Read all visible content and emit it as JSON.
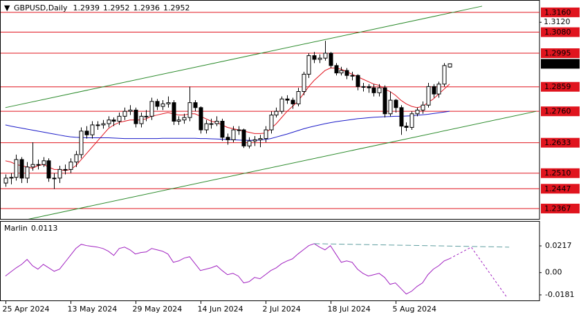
{
  "chart_data": {
    "type": "candlestick",
    "title": "GBPUSD,Daily",
    "header_values": [
      1.2939,
      1.2952,
      1.2936,
      1.2952
    ],
    "categories": [
      "25 Apr 2024",
      null,
      null,
      null,
      null,
      null,
      null,
      null,
      null,
      null,
      null,
      null,
      "13 May 2024",
      null,
      null,
      null,
      null,
      null,
      null,
      null,
      null,
      null,
      null,
      null,
      "29 May 2024",
      null,
      null,
      null,
      null,
      null,
      null,
      null,
      null,
      null,
      null,
      null,
      "14 Jun 2024",
      null,
      null,
      null,
      null,
      null,
      null,
      null,
      null,
      null,
      null,
      null,
      "2 Jul 2024",
      null,
      null,
      null,
      null,
      null,
      null,
      null,
      null,
      null,
      null,
      null,
      "18 Jul 2024",
      null,
      null,
      null,
      null,
      null,
      null,
      null,
      null,
      null,
      null,
      null,
      "5 Aug 2024",
      null,
      null,
      null,
      null,
      null,
      null,
      null,
      null,
      null,
      null
    ],
    "ohlc": [
      [
        1.247,
        1.2505,
        1.2455,
        1.249
      ],
      [
        1.249,
        1.251,
        1.2465,
        1.2493
      ],
      [
        1.2493,
        1.2585,
        1.248,
        1.2565
      ],
      [
        1.2565,
        1.2575,
        1.247,
        1.249
      ],
      [
        1.249,
        1.2555,
        1.247,
        1.2535
      ],
      [
        1.2535,
        1.2635,
        1.252,
        1.2545
      ],
      [
        1.2545,
        1.2565,
        1.2525,
        1.2545
      ],
      [
        1.2545,
        1.2575,
        1.2535,
        1.256
      ],
      [
        1.256,
        1.257,
        1.2475,
        1.249
      ],
      [
        1.249,
        1.251,
        1.2446,
        1.249
      ],
      [
        1.249,
        1.254,
        1.247,
        1.2525
      ],
      [
        1.2525,
        1.2545,
        1.2505,
        1.2525
      ],
      [
        1.2525,
        1.257,
        1.251,
        1.2555
      ],
      [
        1.2555,
        1.26,
        1.2535,
        1.2585
      ],
      [
        1.2585,
        1.2695,
        1.257,
        1.268
      ],
      [
        1.268,
        1.27,
        1.265,
        1.2665
      ],
      [
        1.2665,
        1.272,
        1.265,
        1.2705
      ],
      [
        1.2705,
        1.272,
        1.2685,
        1.2705
      ],
      [
        1.2705,
        1.2725,
        1.269,
        1.271
      ],
      [
        1.271,
        1.274,
        1.2695,
        1.2725
      ],
      [
        1.2725,
        1.2735,
        1.27,
        1.272
      ],
      [
        1.272,
        1.2755,
        1.2705,
        1.274
      ],
      [
        1.274,
        1.2775,
        1.2725,
        1.276
      ],
      [
        1.276,
        1.2785,
        1.2745,
        1.2765
      ],
      [
        1.2765,
        1.2775,
        1.2695,
        1.271
      ],
      [
        1.271,
        1.2755,
        1.2695,
        1.274
      ],
      [
        1.274,
        1.2765,
        1.272,
        1.274
      ],
      [
        1.274,
        1.2815,
        1.2725,
        1.28
      ],
      [
        1.28,
        1.281,
        1.2765,
        1.278
      ],
      [
        1.278,
        1.2805,
        1.2765,
        1.279
      ],
      [
        1.279,
        1.282,
        1.2775,
        1.2795
      ],
      [
        1.2795,
        1.2805,
        1.2705,
        1.272
      ],
      [
        1.272,
        1.274,
        1.2705,
        1.2725
      ],
      [
        1.2725,
        1.275,
        1.271,
        1.2735
      ],
      [
        1.2735,
        1.286,
        1.272,
        1.2795
      ],
      [
        1.2795,
        1.2805,
        1.276,
        1.2775
      ],
      [
        1.2775,
        1.278,
        1.267,
        1.2685
      ],
      [
        1.2685,
        1.2725,
        1.267,
        1.271
      ],
      [
        1.271,
        1.273,
        1.269,
        1.271
      ],
      [
        1.271,
        1.274,
        1.27,
        1.272
      ],
      [
        1.272,
        1.273,
        1.264,
        1.2655
      ],
      [
        1.2655,
        1.267,
        1.2625,
        1.2645
      ],
      [
        1.2645,
        1.27,
        1.2635,
        1.2685
      ],
      [
        1.2685,
        1.27,
        1.2665,
        1.2685
      ],
      [
        1.2685,
        1.269,
        1.2612,
        1.262
      ],
      [
        1.262,
        1.2655,
        1.261,
        1.264
      ],
      [
        1.264,
        1.266,
        1.262,
        1.2645
      ],
      [
        1.2645,
        1.2665,
        1.2615,
        1.265
      ],
      [
        1.265,
        1.27,
        1.2635,
        1.2685
      ],
      [
        1.2685,
        1.276,
        1.267,
        1.2745
      ],
      [
        1.2745,
        1.2775,
        1.2735,
        1.276
      ],
      [
        1.276,
        1.282,
        1.275,
        1.281
      ],
      [
        1.281,
        1.2825,
        1.279,
        1.2805
      ],
      [
        1.2805,
        1.2815,
        1.277,
        1.279
      ],
      [
        1.279,
        1.2855,
        1.278,
        1.284
      ],
      [
        1.284,
        1.292,
        1.2825,
        1.291
      ],
      [
        1.291,
        1.2995,
        1.2895,
        1.2985
      ],
      [
        1.2985,
        1.3,
        1.2955,
        1.297
      ],
      [
        1.297,
        1.299,
        1.2955,
        1.2975
      ],
      [
        1.2975,
        1.3045,
        1.2965,
        1.2995
      ],
      [
        1.2995,
        1.3,
        1.2935,
        1.2945
      ],
      [
        1.2945,
        1.2955,
        1.2905,
        1.2915
      ],
      [
        1.2915,
        1.294,
        1.2905,
        1.2925
      ],
      [
        1.2925,
        1.2935,
        1.289,
        1.2905
      ],
      [
        1.2905,
        1.292,
        1.2885,
        1.2905
      ],
      [
        1.2905,
        1.291,
        1.2845,
        1.286
      ],
      [
        1.286,
        1.2875,
        1.284,
        1.286
      ],
      [
        1.286,
        1.287,
        1.2835,
        1.2855
      ],
      [
        1.2855,
        1.287,
        1.282,
        1.2835
      ],
      [
        1.2835,
        1.287,
        1.282,
        1.2855
      ],
      [
        1.2855,
        1.2865,
        1.2735,
        1.275
      ],
      [
        1.275,
        1.284,
        1.274,
        1.2805
      ],
      [
        1.2805,
        1.281,
        1.2755,
        1.2775
      ],
      [
        1.2775,
        1.2785,
        1.2665,
        1.27
      ],
      [
        1.27,
        1.2715,
        1.268,
        1.2695
      ],
      [
        1.2695,
        1.276,
        1.2685,
        1.275
      ],
      [
        1.275,
        1.2775,
        1.274,
        1.2765
      ],
      [
        1.2765,
        1.28,
        1.275,
        1.2785
      ],
      [
        1.2785,
        1.2875,
        1.2775,
        1.286
      ],
      [
        1.286,
        1.287,
        1.2815,
        1.283
      ],
      [
        1.283,
        1.288,
        1.2815,
        1.287
      ],
      [
        1.287,
        1.2955,
        1.286,
        1.2945
      ],
      [
        1.2939,
        1.2952,
        1.2936,
        1.2952
      ]
    ],
    "xlim": [
      -1,
      98.6
    ],
    "ylim": [
      1.2325,
      1.3196
    ],
    "yticks": [
      {
        "value": 1.312,
        "label": "1.3120"
      }
    ],
    "levels": [
      {
        "value": 1.316,
        "label": "1.3160"
      },
      {
        "value": 1.308,
        "label": "1.3080"
      },
      {
        "value": 1.2995,
        "label": "1.2995"
      },
      {
        "value": 1.2859,
        "label": "1.2859"
      },
      {
        "value": 1.276,
        "label": "1.2760"
      },
      {
        "value": 1.2633,
        "label": "1.2633"
      },
      {
        "value": 1.251,
        "label": "1.2510"
      },
      {
        "value": 1.2447,
        "label": "1.2447"
      },
      {
        "value": 1.2367,
        "label": "1.2367"
      }
    ],
    "level_color": "#e0141e",
    "current_price": 1.2952,
    "moving_averages": [
      {
        "color": "#e0141e",
        "values": [
          1.256,
          1.2555,
          1.2545,
          1.254,
          1.2535,
          1.253,
          1.254,
          1.2545,
          1.2535,
          1.2525,
          1.2525,
          1.252,
          1.2525,
          1.254,
          1.2565,
          1.259,
          1.2615,
          1.264,
          1.2665,
          1.269,
          1.2705,
          1.2715,
          1.272,
          1.2725,
          1.2725,
          1.2725,
          1.273,
          1.274,
          1.2745,
          1.275,
          1.2755,
          1.275,
          1.2745,
          1.2745,
          1.275,
          1.275,
          1.274,
          1.273,
          1.272,
          1.2715,
          1.2705,
          1.2695,
          1.269,
          1.2685,
          1.268,
          1.2675,
          1.267,
          1.267,
          1.2672,
          1.269,
          1.271,
          1.2735,
          1.276,
          1.278,
          1.28,
          1.283,
          1.286,
          1.2885,
          1.2905,
          1.2925,
          1.2935,
          1.2935,
          1.293,
          1.292,
          1.291,
          1.29,
          1.289,
          1.288,
          1.287,
          1.2865,
          1.285,
          1.284,
          1.2825,
          1.2805,
          1.279,
          1.278,
          1.2775,
          1.278,
          1.2795,
          1.281,
          1.283,
          1.285,
          1.287
        ]
      },
      {
        "color": "#1a1ac8",
        "values": [
          1.2705,
          1.27,
          1.2696,
          1.2692,
          1.2688,
          1.2684,
          1.268,
          1.2676,
          1.2672,
          1.2668,
          1.2664,
          1.266,
          1.2657,
          1.2655,
          1.2654,
          1.2653,
          1.2653,
          1.2653,
          1.2653,
          1.2653,
          1.2652,
          1.2651,
          1.265,
          1.265,
          1.265,
          1.265,
          1.265,
          1.265,
          1.265,
          1.2651,
          1.2651,
          1.2651,
          1.2651,
          1.2651,
          1.2651,
          1.2651,
          1.265,
          1.265,
          1.2649,
          1.2648,
          1.2647,
          1.2646,
          1.2645,
          1.2644,
          1.2643,
          1.2643,
          1.2643,
          1.2644,
          1.2646,
          1.265,
          1.2656,
          1.2662,
          1.2668,
          1.2675,
          1.2682,
          1.2689,
          1.2695,
          1.27,
          1.2705,
          1.271,
          1.2714,
          1.2718,
          1.2721,
          1.2724,
          1.2727,
          1.273,
          1.2732,
          1.2734,
          1.2736,
          1.2737,
          1.2738,
          1.2739,
          1.274,
          1.274,
          1.2741,
          1.2742,
          1.2744,
          1.2746,
          1.2748,
          1.2751,
          1.2754,
          1.2757,
          1.276
        ]
      }
    ],
    "channel": [
      {
        "color": "#2a8a2a",
        "x": [
          0,
          88
        ],
        "values": [
          1.2775,
          1.3185
        ]
      },
      {
        "color": "#2a8a2a",
        "x": [
          3,
          98
        ],
        "values": [
          1.2318,
          1.276
        ]
      }
    ],
    "oscillator": {
      "name": "Marlin",
      "last": 0.0113,
      "color": "#a020c0",
      "ylim": [
        -0.0226,
        0.0408
      ],
      "yticks": [
        0.0217,
        {
          "value": 0,
          "label": "0.00"
        },
        -0.0181
      ],
      "values": [
        -0.0028,
        0.0006,
        0.0039,
        0.0067,
        0.0107,
        0.0056,
        0.0028,
        0.0067,
        0.0039,
        0.0011,
        0.0028,
        0.0084,
        0.014,
        0.0196,
        0.023,
        0.0219,
        0.0213,
        0.0207,
        0.0196,
        0.0174,
        0.014,
        0.0196,
        0.0207,
        0.0185,
        0.0151,
        0.0163,
        0.0168,
        0.0196,
        0.0185,
        0.0174,
        0.0151,
        0.0084,
        0.0095,
        0.0118,
        0.0129,
        0.0073,
        0.0017,
        0.0028,
        0.0039,
        0.0056,
        0.0017,
        -0.0017,
        -0.0006,
        -0.0028,
        -0.0084,
        -0.0073,
        -0.0039,
        -0.005,
        -0.0017,
        0.0017,
        0.0039,
        0.0073,
        0.0095,
        0.0112,
        0.0151,
        0.0185,
        0.0219,
        0.0235,
        0.0207,
        0.0185,
        0.0219,
        0.0151,
        0.0084,
        0.0095,
        0.0084,
        0.0028,
        -0.0006,
        -0.0028,
        -0.0017,
        -0.0006,
        -0.0039,
        -0.0095,
        -0.0084,
        -0.0129,
        -0.0174,
        -0.0151,
        -0.0112,
        -0.0084,
        -0.0017,
        0.0028,
        0.0056,
        0.0095,
        0.0113
      ],
      "forecast": {
        "x": [
          82,
          86,
          92.5
        ],
        "values": [
          0.0113,
          0.0207,
          -0.0196
        ]
      },
      "signal": {
        "color": "#5f9ea0",
        "x": [
          57,
          93
        ],
        "values": [
          0.0235,
          0.0207
        ]
      }
    }
  }
}
